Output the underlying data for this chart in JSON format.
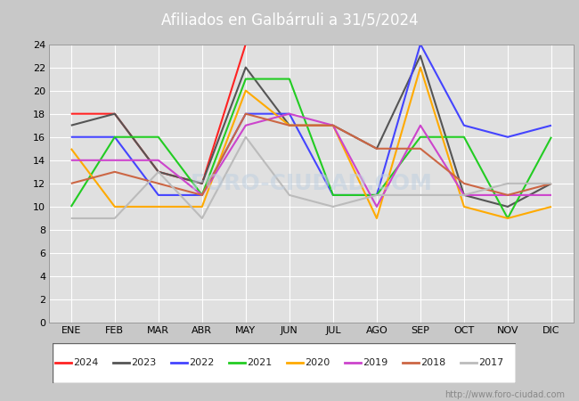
{
  "title": "Afiliados en Galbárruli a 31/5/2024",
  "months": [
    "ENE",
    "FEB",
    "MAR",
    "ABR",
    "MAY",
    "JUN",
    "JUL",
    "AGO",
    "SEP",
    "OCT",
    "NOV",
    "DIC"
  ],
  "series": {
    "2024": {
      "color": "#ff2222",
      "values": [
        18,
        18,
        13,
        12,
        24,
        null,
        null,
        null,
        null,
        null,
        null,
        null
      ]
    },
    "2023": {
      "color": "#555555",
      "values": [
        17,
        18,
        13,
        12,
        22,
        17,
        17,
        15,
        23,
        11,
        10,
        12
      ]
    },
    "2022": {
      "color": "#4444ff",
      "values": [
        16,
        16,
        11,
        11,
        18,
        18,
        11,
        11,
        24,
        17,
        16,
        17
      ]
    },
    "2021": {
      "color": "#22cc22",
      "values": [
        10,
        16,
        16,
        11,
        21,
        21,
        11,
        11,
        16,
        16,
        9,
        16
      ]
    },
    "2020": {
      "color": "#ffaa00",
      "values": [
        15,
        10,
        10,
        10,
        20,
        17,
        17,
        9,
        22,
        10,
        9,
        10
      ]
    },
    "2019": {
      "color": "#cc44cc",
      "values": [
        14,
        14,
        14,
        11,
        17,
        18,
        17,
        10,
        17,
        11,
        11,
        11
      ]
    },
    "2018": {
      "color": "#cc6644",
      "values": [
        12,
        13,
        12,
        11,
        18,
        17,
        17,
        15,
        15,
        12,
        11,
        12
      ]
    },
    "2017": {
      "color": "#bbbbbb",
      "values": [
        9,
        9,
        13,
        9,
        16,
        11,
        10,
        11,
        null,
        11,
        12,
        12
      ]
    }
  },
  "ylim": [
    0,
    24
  ],
  "yticks": [
    0,
    2,
    4,
    6,
    8,
    10,
    12,
    14,
    16,
    18,
    20,
    22,
    24
  ],
  "title_bg": "#5588cc",
  "plot_bg": "#e0e0e0",
  "fig_bg": "#c8c8c8",
  "footer_text": "http://www.foro-ciudad.com",
  "legend_years": [
    "2024",
    "2023",
    "2022",
    "2021",
    "2020",
    "2019",
    "2018",
    "2017"
  ]
}
